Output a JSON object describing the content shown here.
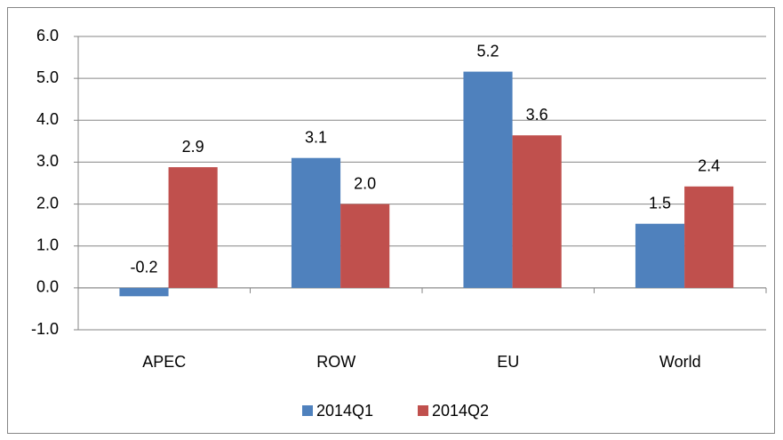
{
  "chart_data": {
    "type": "bar",
    "categories": [
      "APEC",
      "ROW",
      "EU",
      "World"
    ],
    "series": [
      {
        "name": "2014Q1",
        "color": "#4f81bd",
        "values": [
          -0.2,
          3.1,
          5.16,
          1.53
        ],
        "value_labels": [
          "-0.2",
          "3.1",
          "5.2",
          "1.5"
        ]
      },
      {
        "name": "2014Q2",
        "color": "#c0504d",
        "values": [
          2.88,
          2.0,
          3.64,
          2.42
        ],
        "value_labels": [
          "2.9",
          "2.0",
          "3.6",
          "2.4"
        ]
      }
    ],
    "ylim": [
      -1,
      6
    ],
    "yticks": [
      {
        "value": -1,
        "label": "-1.0"
      },
      {
        "value": 0,
        "label": "0.0"
      },
      {
        "value": 1,
        "label": "1.0"
      },
      {
        "value": 2,
        "label": "2.0"
      },
      {
        "value": 3,
        "label": "3.0"
      },
      {
        "value": 4,
        "label": "4.0"
      },
      {
        "value": 5,
        "label": "5.0"
      },
      {
        "value": 6,
        "label": "6.0"
      }
    ],
    "grid": true,
    "legend": "bottom"
  }
}
